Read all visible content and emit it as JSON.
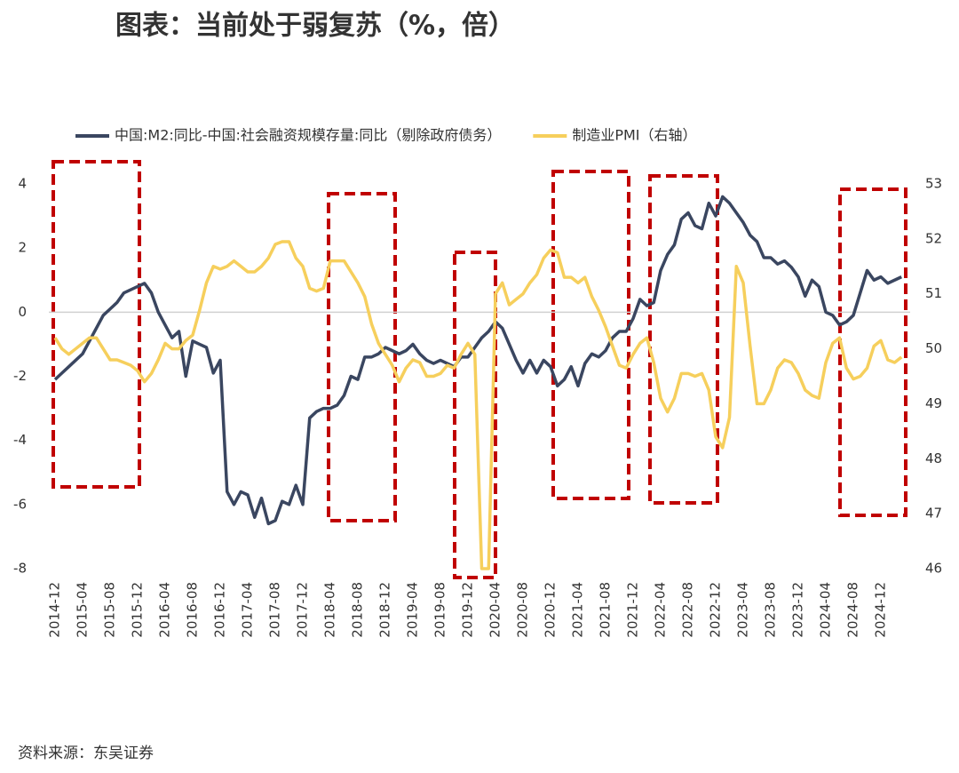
{
  "chart_data": {
    "type": "line",
    "title": "图表：当前处于弱复苏（%，倍）",
    "source": "资料来源：东吴证券",
    "categories": [
      "2014-12",
      null,
      null,
      null,
      "2015-04",
      null,
      null,
      null,
      "2015-08",
      null,
      null,
      null,
      "2015-12",
      null,
      null,
      null,
      "2016-04",
      null,
      null,
      null,
      "2016-08",
      null,
      null,
      null,
      "2016-12",
      null,
      null,
      null,
      "2017-04",
      null,
      null,
      null,
      "2017-08",
      null,
      null,
      null,
      "2017-12",
      null,
      null,
      null,
      "2018-04",
      null,
      null,
      null,
      "2018-08",
      null,
      null,
      null,
      "2018-12",
      null,
      null,
      null,
      "2019-04",
      null,
      null,
      null,
      "2019-08",
      null,
      null,
      null,
      "2019-12",
      null,
      null,
      null,
      "2020-04",
      null,
      null,
      null,
      "2020-08",
      null,
      null,
      null,
      "2020-12",
      null,
      null,
      null,
      "2021-04",
      null,
      null,
      null,
      "2021-08",
      null,
      null,
      null,
      "2021-12",
      null,
      null,
      null,
      "2022-04",
      null,
      null,
      null,
      "2022-08",
      null,
      null,
      null,
      "2022-12",
      null,
      null,
      null,
      "2023-04",
      null,
      null,
      null,
      "2023-08",
      null,
      null,
      null,
      "2023-12",
      null,
      null,
      null,
      "2024-04",
      null,
      null,
      null,
      "2024-08",
      null,
      null,
      null,
      "2024-12",
      null,
      null,
      null
    ],
    "series": [
      {
        "name": "中国:M2:同比-中国:社会融资规模存量:同比（剔除政府债务）",
        "color": "#3a4660",
        "values": [
          -2.1,
          -1.9,
          -1.7,
          -1.5,
          -1.3,
          -0.9,
          -0.5,
          -0.1,
          0.1,
          0.3,
          0.6,
          0.7,
          0.8,
          0.9,
          0.6,
          0.0,
          -0.4,
          -0.8,
          -0.6,
          -2.0,
          -0.9,
          -1.0,
          -1.1,
          -1.9,
          -1.5,
          -5.6,
          -6.0,
          -5.6,
          -5.7,
          -6.4,
          -5.8,
          -6.6,
          -6.5,
          -5.9,
          -6.0,
          -5.4,
          -6.0,
          -3.3,
          -3.1,
          -3.0,
          -3.0,
          -2.9,
          -2.6,
          -2.0,
          -2.1,
          -1.4,
          -1.4,
          -1.3,
          -1.1,
          -1.2,
          -1.3,
          -1.2,
          -1.0,
          -1.3,
          -1.5,
          -1.6,
          -1.5,
          -1.6,
          -1.7,
          -1.4,
          -1.4,
          -1.1,
          -0.8,
          -0.6,
          -0.3,
          -0.5,
          -1.0,
          -1.5,
          -1.9,
          -1.5,
          -1.9,
          -1.5,
          -1.7,
          -2.3,
          -2.1,
          -1.7,
          -2.3,
          -1.6,
          -1.3,
          -1.4,
          -1.2,
          -0.8,
          -0.6,
          -0.6,
          -0.2,
          0.4,
          0.2,
          0.3,
          1.3,
          1.8,
          2.1,
          2.9,
          3.1,
          2.7,
          2.6,
          3.4,
          3.0,
          3.6,
          3.4,
          3.1,
          2.8,
          2.4,
          2.2,
          1.7,
          1.7,
          1.5,
          1.6,
          1.4,
          1.1,
          0.5,
          1.0,
          0.8,
          0.0,
          -0.1,
          -0.4,
          -0.3,
          -0.1,
          0.6,
          1.3,
          1.0,
          1.1,
          0.9,
          1.0,
          1.1
        ]
      },
      {
        "name": "制造业PMI（右轴）",
        "color": "#f6cf5c",
        "axis": "y2",
        "values": [
          50.2,
          50.0,
          49.9,
          50.0,
          50.1,
          50.2,
          50.2,
          50.0,
          49.8,
          49.8,
          49.75,
          49.7,
          49.6,
          49.4,
          49.55,
          49.8,
          50.1,
          50.0,
          50.0,
          50.15,
          50.25,
          50.7,
          51.2,
          51.5,
          51.45,
          51.5,
          51.6,
          51.5,
          51.4,
          51.4,
          51.5,
          51.65,
          51.9,
          51.95,
          51.95,
          51.65,
          51.5,
          51.1,
          51.05,
          51.1,
          51.6,
          51.6,
          51.6,
          51.4,
          51.2,
          50.95,
          50.45,
          50.1,
          49.9,
          49.7,
          49.4,
          49.65,
          49.8,
          49.75,
          49.5,
          49.5,
          49.55,
          49.7,
          49.65,
          49.9,
          50.1,
          49.9,
          46.0,
          46.0,
          51.0,
          51.2,
          50.8,
          50.9,
          51.0,
          51.2,
          51.35,
          51.65,
          51.8,
          51.75,
          51.3,
          51.3,
          51.2,
          51.3,
          50.95,
          50.7,
          50.4,
          50.05,
          49.7,
          49.65,
          49.9,
          50.1,
          50.2,
          49.75,
          49.1,
          48.85,
          49.1,
          49.55,
          49.55,
          49.5,
          49.55,
          49.25,
          48.4,
          48.2,
          48.75,
          51.5,
          51.2,
          50.05,
          49.0,
          49.0,
          49.25,
          49.65,
          49.8,
          49.75,
          49.55,
          49.25,
          49.15,
          49.1,
          49.75,
          50.1,
          50.2,
          49.65,
          49.45,
          49.5,
          49.65,
          50.05,
          50.15,
          49.8,
          49.75,
          49.85
        ]
      }
    ],
    "ylim": [
      -8,
      4
    ],
    "yticks": [
      -8,
      -6,
      -4,
      -2,
      0,
      2,
      4
    ],
    "y2lim": [
      46,
      53
    ],
    "y2ticks": [
      46,
      47,
      48,
      49,
      50,
      51,
      52,
      53
    ],
    "grid": false,
    "legend": "top"
  }
}
